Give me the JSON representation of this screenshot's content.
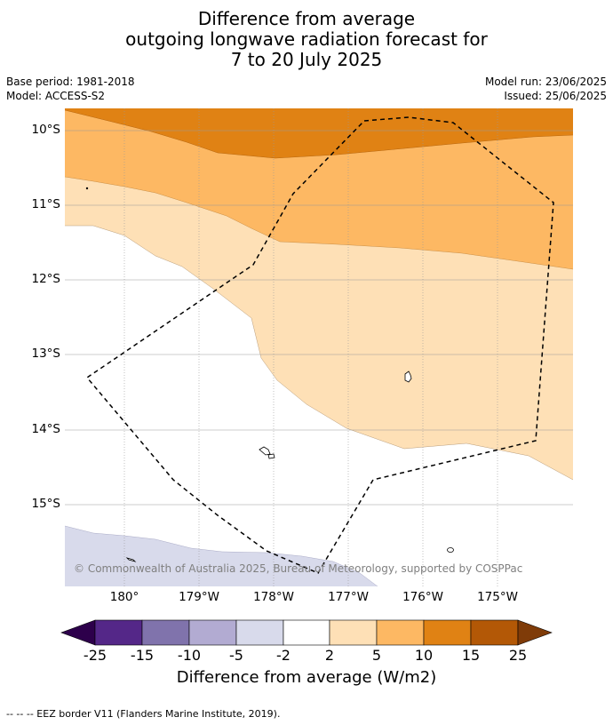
{
  "title": {
    "line1": "Difference from average",
    "line2": "outgoing longwave radiation forecast for",
    "line3": "7 to 20 July 2025"
  },
  "meta": {
    "base_period": "Base period: 1981-2018",
    "model": "Model: ACCESS-S2",
    "model_run": "Model run: 23/06/2025",
    "issued": "Issued: 25/06/2025"
  },
  "map": {
    "lat_labels": [
      "10°S",
      "11°S",
      "12°S",
      "13°S",
      "14°S",
      "15°S"
    ],
    "lon_labels": [
      "180°",
      "179°W",
      "178°W",
      "177°W",
      "176°W",
      "175°W"
    ],
    "copyright": "© Commonwealth of Australia 2025, Bureau of Meteorology, supported by COSPPac",
    "colors": {
      "orange_dark": "#e08214",
      "orange_mid": "#fdb863",
      "orange_light": "#fee0b6",
      "purple_light": "#d8daeb",
      "white": "#ffffff",
      "eez_line": "#000000"
    }
  },
  "colorbar": {
    "ticks": [
      "-25",
      "-15",
      "-10",
      "-5",
      "-2",
      "2",
      "5",
      "10",
      "15",
      "25"
    ],
    "colors": [
      "#2d004b",
      "#542788",
      "#8073ac",
      "#b2abd2",
      "#d8daeb",
      "#ffffff",
      "#fee0b6",
      "#fdb863",
      "#e08214",
      "#b35806",
      "#7f3b08"
    ],
    "label": "Difference from average (W/m2)"
  },
  "footnote": "--  --  -- EEZ border V11 (Flanders Marine Institute, 2019)."
}
